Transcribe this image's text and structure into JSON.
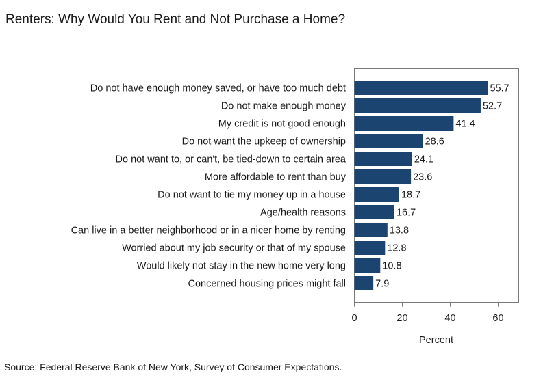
{
  "chart_data": {
    "type": "bar",
    "orientation": "horizontal",
    "title": "Renters: Why Would You Rent and Not Purchase a Home?",
    "xlabel": "Percent",
    "ylabel": "",
    "xlim": [
      0,
      70
    ],
    "xticks": [
      0,
      20,
      40,
      60
    ],
    "grid": false,
    "bar_color": "#1c4470",
    "categories": [
      "Do not have enough money saved, or have too much debt",
      "Do not make enough money",
      "My credit is not good enough",
      "Do not want the upkeep of ownership",
      "Do not want to, or can't, be tied-down to certain area",
      "More affordable to rent than buy",
      "Do not want to tie my money up in a house",
      "Age/health reasons",
      "Can live in a better neighborhood or in a nicer home by renting",
      "Worried about my job security or that of my spouse",
      "Would likely not stay in the new home very long",
      "Concerned housing prices might fall"
    ],
    "values": [
      55.7,
      52.7,
      41.4,
      28.6,
      24.1,
      23.6,
      18.7,
      16.7,
      13.8,
      12.8,
      10.8,
      7.9
    ],
    "source": "Source: Federal Reserve Bank of New York, Survey of Consumer Expectations."
  }
}
